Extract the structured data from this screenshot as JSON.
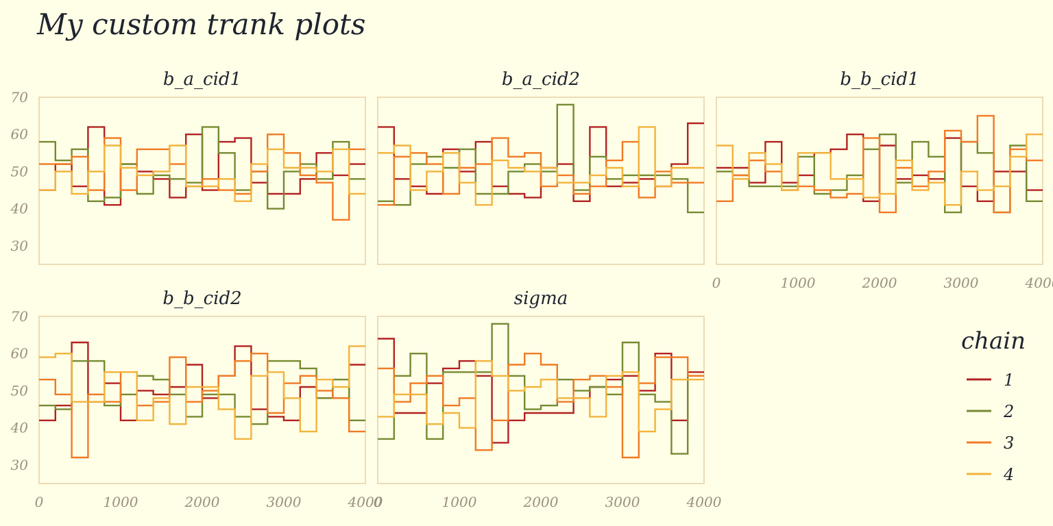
{
  "chart_data": {
    "type": "line",
    "title": "My custom trank plots",
    "x_ticks": [
      0,
      1000,
      2000,
      3000,
      4000
    ],
    "y_ticks": [
      30,
      40,
      50,
      60,
      70
    ],
    "xlim": [
      0,
      4000
    ],
    "ylim": [
      25,
      70
    ],
    "legend": {
      "title": "chain",
      "placement": "right",
      "entries": [
        "1",
        "2",
        "3",
        "4"
      ],
      "colors": [
        "#b22222",
        "#758a32",
        "#f07a24",
        "#f2b33d"
      ]
    },
    "bin_edges": [
      0,
      200,
      400,
      600,
      800,
      1000,
      1200,
      1400,
      1600,
      1800,
      2000,
      2200,
      2400,
      2600,
      2800,
      3000,
      3200,
      3400,
      3600,
      3800,
      4000
    ],
    "panels": [
      {
        "name": "b_a_cid1",
        "series": [
          {
            "chain": "1",
            "values": [
              45,
              52,
              46,
              62,
              41,
              52,
              50,
              48,
              43,
              60,
              45,
              58,
              59,
              47,
              44,
              44,
              48,
              55,
              49,
              52
            ]
          },
          {
            "chain": "2",
            "values": [
              58,
              53,
              56,
              42,
              43,
              52,
              44,
              49,
              48,
              47,
              62,
              55,
              45,
              50,
              40,
              50,
              52,
              48,
              58,
              48
            ]
          },
          {
            "chain": "3",
            "values": [
              52,
              52,
              54,
              45,
              59,
              45,
              56,
              56,
              52,
              46,
              48,
              45,
              44,
              50,
              60,
              55,
              49,
              47,
              37,
              56
            ]
          },
          {
            "chain": "4",
            "values": [
              45,
              50,
              44,
              50,
              57,
              51,
              49,
              50,
              57,
              46,
              46,
              48,
              42,
              52,
              56,
              51,
              51,
              50,
              56,
              44
            ]
          }
        ]
      },
      {
        "name": "b_a_cid2",
        "series": [
          {
            "chain": "1",
            "values": [
              62,
              48,
              46,
              44,
              56,
              50,
              58,
              46,
              44,
              43,
              51,
              52,
              42,
              62,
              46,
              47,
              48,
              46,
              52,
              63
            ]
          },
          {
            "chain": "2",
            "values": [
              42,
              41,
              52,
              54,
              51,
              56,
              44,
              44,
              50,
              52,
              50,
              68,
              45,
              54,
              48,
              49,
              49,
              49,
              48,
              39
            ]
          },
          {
            "chain": "3",
            "values": [
              41,
              54,
              55,
              52,
              44,
              51,
              52,
              59,
              54,
              55,
              46,
              49,
              44,
              46,
              53,
              58,
              43,
              50,
              47,
              47
            ]
          },
          {
            "chain": "4",
            "values": [
              55,
              57,
              45,
              50,
              55,
              47,
              41,
              53,
              51,
              50,
              51,
              47,
              47,
              49,
              51,
              46,
              62,
              46,
              51,
              51
            ]
          }
        ]
      },
      {
        "name": "b_b_cid1",
        "series": [
          {
            "chain": "1",
            "values": [
              51,
              51,
              47,
              58,
              47,
              49,
              55,
              56,
              60,
              42,
              57,
              48,
              49,
              48,
              59,
              46,
              42,
              50,
              50,
              45
            ]
          },
          {
            "chain": "2",
            "values": [
              50,
              49,
              46,
              46,
              46,
              54,
              44,
              45,
              49,
              56,
              60,
              47,
              58,
              54,
              39,
              58,
              55,
              39,
              57,
              42
            ]
          },
          {
            "chain": "3",
            "values": [
              42,
              49,
              53,
              50,
              45,
              46,
              45,
              43,
              44,
              59,
              39,
              51,
              46,
              50,
              61,
              58,
              65,
              39,
              56,
              53
            ]
          },
          {
            "chain": "4",
            "values": [
              57,
              48,
              55,
              52,
              45,
              55,
              55,
              48,
              48,
              43,
              44,
              53,
              45,
              47,
              41,
              50,
              45,
              46,
              54,
              60
            ]
          }
        ]
      },
      {
        "name": "b_b_cid2",
        "series": [
          {
            "chain": "1",
            "values": [
              42,
              46,
              63,
              47,
              52,
              42,
              50,
              49,
              51,
              57,
              48,
              54,
              62,
              45,
              43,
              42,
              51,
              48,
              48,
              57
            ]
          },
          {
            "chain": "2",
            "values": [
              46,
              45,
              58,
              58,
              46,
              49,
              54,
              53,
              49,
              43,
              49,
              49,
              43,
              41,
              58,
              58,
              56,
              48,
              53,
              42
            ]
          },
          {
            "chain": "3",
            "values": [
              53,
              49,
              32,
              49,
              47,
              55,
              46,
              47,
              59,
              47,
              50,
              54,
              58,
              60,
              44,
              52,
              54,
              50,
              48,
              39
            ]
          },
          {
            "chain": "4",
            "values": [
              59,
              60,
              47,
              47,
              55,
              55,
              42,
              48,
              41,
              51,
              51,
              45,
              37,
              54,
              55,
              48,
              39,
              53,
              51,
              62
            ]
          }
        ]
      },
      {
        "name": "sigma",
        "series": [
          {
            "chain": "1",
            "values": [
              64,
              44,
              44,
              52,
              56,
              58,
              54,
              36,
              42,
              44,
              44,
              44,
              48,
              51,
              53,
              54,
              50,
              60,
              42,
              55
            ]
          },
          {
            "chain": "2",
            "values": [
              37,
              54,
              60,
              37,
              55,
              55,
              55,
              68,
              54,
              45,
              46,
              53,
              50,
              51,
              49,
              63,
              49,
              47,
              33,
              54
            ]
          },
          {
            "chain": "3",
            "values": [
              56,
              47,
              52,
              54,
              46,
              48,
              34,
              42,
              57,
              60,
              57,
              47,
              53,
              54,
              51,
              32,
              52,
              59,
              59,
              54
            ]
          },
          {
            "chain": "4",
            "values": [
              43,
              49,
              49,
              41,
              44,
              40,
              58,
              54,
              50,
              51,
              53,
              48,
              48,
              43,
              54,
              55,
              39,
              45,
              53,
              53
            ]
          }
        ]
      }
    ]
  }
}
